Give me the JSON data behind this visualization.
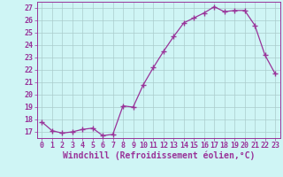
{
  "x": [
    0,
    1,
    2,
    3,
    4,
    5,
    6,
    7,
    8,
    9,
    10,
    11,
    12,
    13,
    14,
    15,
    16,
    17,
    18,
    19,
    20,
    21,
    22,
    23
  ],
  "y": [
    17.8,
    17.1,
    16.9,
    17.0,
    17.2,
    17.3,
    16.7,
    16.8,
    19.1,
    19.0,
    20.8,
    22.2,
    23.5,
    24.7,
    25.8,
    26.2,
    26.6,
    27.1,
    26.7,
    26.8,
    26.8,
    25.6,
    23.2,
    21.7
  ],
  "line_color": "#993399",
  "marker": "+",
  "marker_size": 4,
  "marker_lw": 1.0,
  "bg_color": "#cff5f5",
  "grid_color": "#aacccc",
  "xlabel": "Windchill (Refroidissement éolien,°C)",
  "xlabel_fontsize": 7,
  "tick_fontsize": 6,
  "ylim": [
    16.5,
    27.5
  ],
  "xlim": [
    -0.5,
    23.5
  ],
  "yticks": [
    17,
    18,
    19,
    20,
    21,
    22,
    23,
    24,
    25,
    26,
    27
  ],
  "xticks": [
    0,
    1,
    2,
    3,
    4,
    5,
    6,
    7,
    8,
    9,
    10,
    11,
    12,
    13,
    14,
    15,
    16,
    17,
    18,
    19,
    20,
    21,
    22,
    23
  ]
}
